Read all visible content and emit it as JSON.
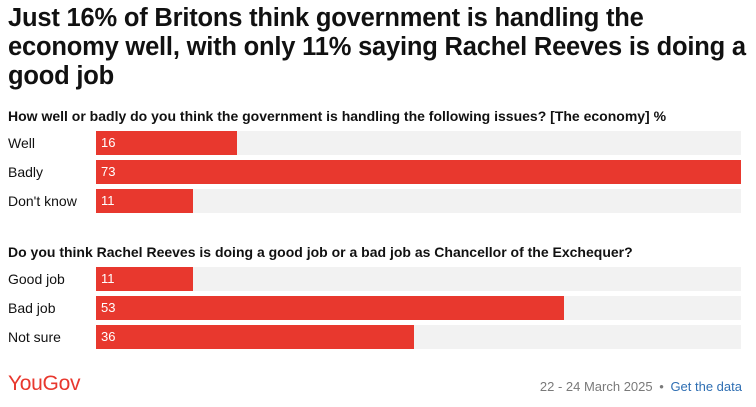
{
  "title": "Just 16% of Britons think government is handling the economy well, with only 11% saying Rachel Reeves is doing a good job",
  "chart_data": [
    {
      "type": "bar",
      "orientation": "horizontal",
      "title": "How well or badly do you think the government is handling the following issues? [The economy] %",
      "categories": [
        "Well",
        "Badly",
        "Don't know"
      ],
      "values": [
        16,
        73,
        11
      ],
      "xlim": [
        0,
        73
      ],
      "color": "#e8382e"
    },
    {
      "type": "bar",
      "orientation": "horizontal",
      "title": "Do you think Rachel Reeves is doing a good job or a bad job as Chancellor of the Exchequer?",
      "categories": [
        "Good job",
        "Bad job",
        "Not sure"
      ],
      "values": [
        11,
        53,
        36
      ],
      "xlim": [
        0,
        73
      ],
      "color": "#e8382e"
    }
  ],
  "footer": {
    "logo": "YouGov",
    "date": "22 - 24 March 2025",
    "separator": "•",
    "link": "Get the data"
  },
  "colors": {
    "bar": "#e8382e",
    "track": "#f2f2f2",
    "link": "#2f6fb3",
    "brand": "#e8382e"
  }
}
